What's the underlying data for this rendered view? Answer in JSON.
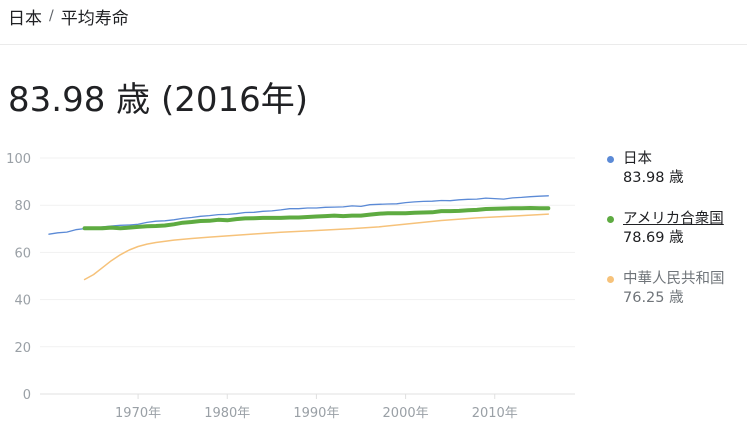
{
  "breadcrumb": {
    "country": "日本",
    "separator": "/",
    "metric": "平均寿命"
  },
  "headline": "83.98 歳 (2016年)",
  "chart_data": {
    "type": "line",
    "xlabel": "",
    "ylabel": "",
    "x_range": [
      1959,
      2019
    ],
    "ylim": [
      0,
      100
    ],
    "y_ticks": [
      0,
      20,
      40,
      60,
      80,
      100
    ],
    "y_tick_labels": [
      "0",
      "20",
      "40",
      "60",
      "80",
      "100"
    ],
    "x_ticks": [
      1970,
      1980,
      1990,
      2000,
      2010
    ],
    "x_tick_labels": [
      "1970年",
      "1980年",
      "1990年",
      "2000年",
      "2010年"
    ],
    "grid": true,
    "legend_position": "right",
    "series": [
      {
        "name": "中華人民共和国",
        "color": "#f6c27a",
        "value_label": "76.25 歳",
        "x": [
          1964,
          1965,
          1966,
          1967,
          1968,
          1969,
          1970,
          1971,
          1972,
          1974,
          1976,
          1978,
          1980,
          1983,
          1986,
          1990,
          1994,
          1997,
          2000,
          2004,
          2008,
          2012,
          2016
        ],
        "y": [
          48.5,
          50.6,
          53.5,
          56.5,
          59.0,
          61.0,
          62.5,
          63.5,
          64.2,
          65.2,
          65.9,
          66.5,
          67.0,
          67.8,
          68.5,
          69.3,
          70.1,
          70.8,
          72.0,
          73.5,
          74.6,
          75.4,
          76.25
        ]
      },
      {
        "name": "日本",
        "color": "#5b8ad6",
        "value_label": "83.98 歳",
        "x": [
          1960,
          1961,
          1962,
          1963,
          1964,
          1965,
          1966,
          1967,
          1968,
          1969,
          1970,
          1971,
          1972,
          1973,
          1974,
          1975,
          1976,
          1977,
          1978,
          1979,
          1980,
          1981,
          1982,
          1983,
          1984,
          1985,
          1986,
          1987,
          1988,
          1989,
          1990,
          1991,
          1992,
          1993,
          1994,
          1995,
          1996,
          1997,
          1998,
          1999,
          2000,
          2001,
          2002,
          2003,
          2004,
          2005,
          2006,
          2007,
          2008,
          2009,
          2010,
          2011,
          2012,
          2013,
          2014,
          2015,
          2016
        ],
        "y": [
          67.7,
          68.3,
          68.6,
          69.6,
          70.1,
          70.2,
          70.8,
          71.2,
          71.5,
          71.6,
          71.9,
          72.7,
          73.2,
          73.4,
          73.8,
          74.4,
          74.8,
          75.3,
          75.6,
          76.0,
          76.1,
          76.4,
          76.9,
          77.0,
          77.4,
          77.6,
          78.0,
          78.5,
          78.5,
          78.8,
          78.8,
          79.1,
          79.2,
          79.3,
          79.7,
          79.5,
          80.2,
          80.4,
          80.5,
          80.6,
          81.1,
          81.4,
          81.6,
          81.7,
          82.0,
          81.9,
          82.3,
          82.5,
          82.6,
          83.0,
          82.8,
          82.6,
          83.1,
          83.3,
          83.6,
          83.8,
          83.98
        ]
      },
      {
        "name": "アメリカ合衆国",
        "color": "#5eab41",
        "value_label": "78.69 歳",
        "x": [
          1964,
          1965,
          1966,
          1967,
          1968,
          1969,
          1970,
          1971,
          1972,
          1973,
          1974,
          1975,
          1976,
          1977,
          1978,
          1979,
          1980,
          1981,
          1982,
          1983,
          1984,
          1985,
          1986,
          1987,
          1988,
          1989,
          1990,
          1991,
          1992,
          1993,
          1994,
          1995,
          1996,
          1997,
          1998,
          1999,
          2000,
          2001,
          2002,
          2003,
          2004,
          2005,
          2006,
          2007,
          2008,
          2009,
          2010,
          2011,
          2012,
          2013,
          2014,
          2015,
          2016
        ],
        "y": [
          70.2,
          70.2,
          70.2,
          70.5,
          70.2,
          70.5,
          70.8,
          71.1,
          71.2,
          71.4,
          71.9,
          72.6,
          72.9,
          73.3,
          73.4,
          73.8,
          73.6,
          74.1,
          74.4,
          74.5,
          74.6,
          74.6,
          74.6,
          74.8,
          74.8,
          75.0,
          75.2,
          75.4,
          75.6,
          75.4,
          75.6,
          75.6,
          76.0,
          76.4,
          76.6,
          76.6,
          76.6,
          76.8,
          76.9,
          77.0,
          77.5,
          77.5,
          77.6,
          77.9,
          78.0,
          78.4,
          78.5,
          78.6,
          78.7,
          78.7,
          78.8,
          78.7,
          78.69
        ]
      }
    ]
  },
  "legend_order": [
    1,
    2,
    0
  ]
}
